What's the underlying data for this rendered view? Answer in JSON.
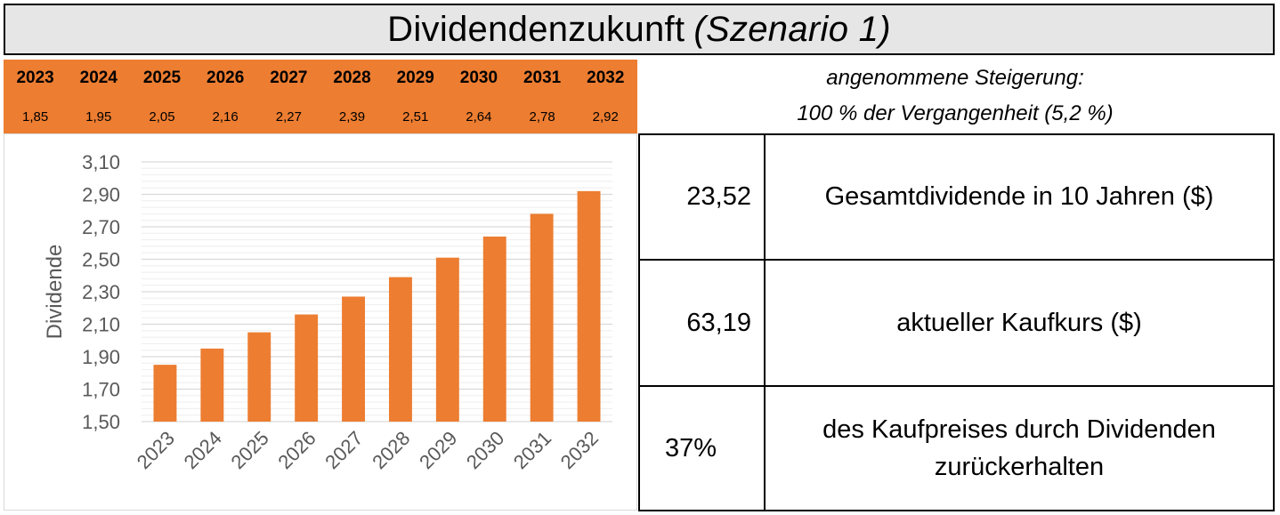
{
  "header": {
    "title": "Dividendenzukunft",
    "subtitle": "(Szenario 1)"
  },
  "colors": {
    "accent": "#ed7d31",
    "title_background": "#e7e6e6",
    "gridline": "#d9d9d9",
    "axis_text": "#595959"
  },
  "year_band": {
    "years": [
      "2023",
      "2024",
      "2025",
      "2026",
      "2027",
      "2028",
      "2029",
      "2030",
      "2031",
      "2032"
    ],
    "values": [
      "1,85",
      "1,95",
      "2,05",
      "2,16",
      "2,27",
      "2,39",
      "2,51",
      "2,64",
      "2,78",
      "2,92"
    ]
  },
  "assumption": {
    "line1": "angenommene Steigerung:",
    "line2": "100 % der Vergangenheit (5,2 %)"
  },
  "chart_data": {
    "type": "bar",
    "categories": [
      "2023",
      "2024",
      "2025",
      "2026",
      "2027",
      "2028",
      "2029",
      "2030",
      "2031",
      "2032"
    ],
    "values": [
      1.85,
      1.95,
      2.05,
      2.16,
      2.27,
      2.39,
      2.51,
      2.64,
      2.78,
      2.92
    ],
    "title": "",
    "xlabel": "",
    "ylabel": "Dividende",
    "ylim": [
      1.5,
      3.1
    ],
    "y_ticks": [
      1.5,
      1.7,
      1.9,
      2.1,
      2.3,
      2.5,
      2.7,
      2.9,
      3.1
    ],
    "y_tick_labels": [
      "1,50",
      "1,70",
      "1,90",
      "2,10",
      "2,30",
      "2,50",
      "2,70",
      "2,90",
      "3,10"
    ],
    "minor_gridlines": true,
    "legend": "none",
    "bar_color": "#ed7d31"
  },
  "summary": [
    {
      "value": "23,52",
      "label": "Gesamtdividende in 10 Jahren ($)"
    },
    {
      "value": "63,19",
      "label": "aktueller Kaufkurs ($)"
    },
    {
      "value": "37%",
      "label": "des Kaufpreises durch Dividenden zurückerhalten"
    }
  ]
}
